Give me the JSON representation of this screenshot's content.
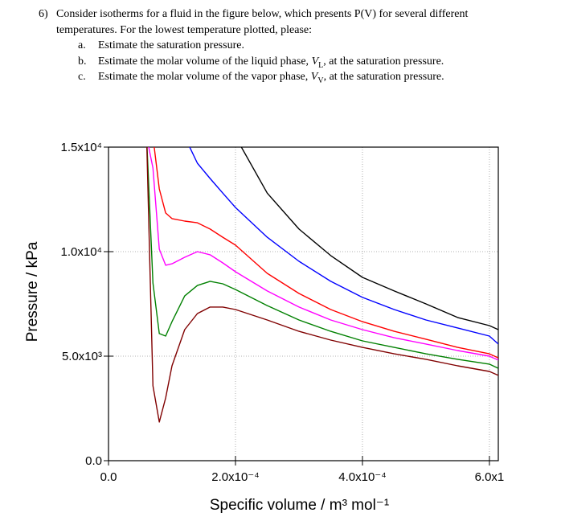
{
  "question": {
    "number": "6)",
    "lines": [
      "Consider isotherms for a fluid in the figure below, which presents P(V) for several different",
      "temperatures.  For the lowest temperature plotted, please:"
    ],
    "items": [
      {
        "letter": "a.",
        "parts": [
          "Estimate the saturation pressure."
        ]
      },
      {
        "letter": "b.",
        "parts": [
          "Estimate the molar volume of the liquid phase, ",
          "V",
          "L",
          ", at the saturation pressure."
        ]
      },
      {
        "letter": "c.",
        "parts": [
          "Estimate the molar volume of the vapor phase, ",
          "V",
          "V",
          ", at the saturation pressure."
        ]
      }
    ]
  },
  "chart_data": {
    "type": "line",
    "x_label": "Specific volume / m³ mol⁻¹",
    "y_label": "Pressure / kPa",
    "xlim": [
      0,
      0.000614
    ],
    "ylim": [
      0,
      15000
    ],
    "xticks": [
      {
        "value": 0,
        "label": "0.0"
      },
      {
        "value": 0.0002,
        "label": "2.0x10⁻⁴"
      },
      {
        "value": 0.0004,
        "label": "4.0x10⁻⁴"
      },
      {
        "value": 0.0006,
        "label": "6.0x1"
      }
    ],
    "yticks": [
      {
        "value": 0,
        "label": "0.0"
      },
      {
        "value": 5000,
        "label": "5.0x10³"
      },
      {
        "value": 10000,
        "label": "1.0x10⁴"
      },
      {
        "value": 15000,
        "label": "1.5x10⁴"
      }
    ],
    "grid": true,
    "x": [
      6e-05,
      7e-05,
      8e-05,
      9e-05,
      0.0001,
      0.00012,
      0.00014,
      0.00016,
      0.00018,
      0.0002,
      0.00025,
      0.0003,
      0.00035,
      0.0004,
      0.00045,
      0.0005,
      0.00055,
      0.0006,
      0.000614
    ],
    "series": [
      {
        "color": "#000000",
        "values": [
          null,
          null,
          null,
          null,
          null,
          null,
          null,
          null,
          null,
          15500,
          12800,
          11080,
          9810,
          8770,
          8120,
          7500,
          6850,
          6460,
          6270
        ]
      },
      {
        "color": "#0000ff",
        "values": [
          null,
          null,
          null,
          null,
          null,
          15500,
          14230,
          13500,
          12800,
          12110,
          10690,
          9540,
          8580,
          7810,
          7230,
          6730,
          6350,
          5960,
          5580
        ]
      },
      {
        "color": "#ff0000",
        "values": [
          null,
          15500,
          13000,
          11850,
          11580,
          11460,
          11380,
          11080,
          10690,
          10310,
          8960,
          8000,
          7230,
          6650,
          6190,
          5810,
          5420,
          5110,
          4920
        ]
      },
      {
        "color": "#ff00ff",
        "values": [
          15500,
          14000,
          10120,
          9350,
          9420,
          9730,
          10000,
          9850,
          9460,
          9040,
          8120,
          7350,
          6730,
          6270,
          5880,
          5580,
          5270,
          5000,
          4810
        ]
      },
      {
        "color": "#008000",
        "values": [
          15500,
          8500,
          6080,
          5960,
          6650,
          7880,
          8380,
          8580,
          8460,
          8190,
          7420,
          6730,
          6190,
          5730,
          5420,
          5110,
          4850,
          4620,
          4420
        ]
      },
      {
        "color": "#800000",
        "values": [
          15500,
          3580,
          1850,
          3000,
          4540,
          6270,
          7040,
          7350,
          7350,
          7230,
          6730,
          6190,
          5770,
          5420,
          5110,
          4850,
          4540,
          4270,
          4080
        ]
      }
    ]
  }
}
